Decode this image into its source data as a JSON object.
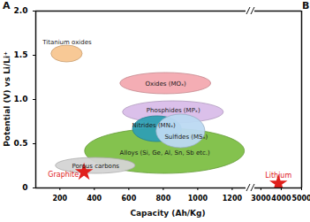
{
  "chart_data": {
    "type": "scatter",
    "panel_labels": [
      "A",
      "B"
    ],
    "x_label": "Capacity (Ah/Kg)",
    "y_label": "Potential (V) vs Li/Li⁺",
    "xlim": [
      [
        60,
        1280
      ],
      [
        2700,
        5000
      ]
    ],
    "xticks": [
      [
        200,
        400,
        600,
        800,
        1000,
        1200
      ],
      [
        3000,
        4000,
        5000
      ]
    ],
    "ylim": [
      0,
      2
    ],
    "yticks": [
      0,
      0.5,
      {
        "value": 1,
        "label": "1.0"
      },
      1.5,
      {
        "value": 2,
        "label": "2.0"
      }
    ],
    "grid": false,
    "series": [
      {
        "name": "Titanium oxides",
        "type": "ellipse",
        "color": "#f8c690",
        "x": [
          151,
          332
        ],
        "y": [
          1.42,
          1.61
        ]
      },
      {
        "name": "Oxides (MOₓ)",
        "type": "ellipse",
        "color": "#f3a9b0",
        "x": [
          551,
          1078
        ],
        "y": [
          1.06,
          1.3
        ]
      },
      {
        "name": "Phosphides (MPₓ)",
        "type": "ellipse",
        "color": "#d9bde9",
        "x": [
          566,
          1151
        ],
        "y": [
          0.73,
          0.98
        ]
      },
      {
        "name": "Alloys (Si, Ge, Al, Sn, Sb etc.)",
        "type": "ellipse",
        "color": "#7dbf45",
        "x": [
          346,
          1273
        ],
        "y": [
          0.16,
          0.67
        ]
      },
      {
        "name": "Nitrides (MNₓ)",
        "type": "ellipse",
        "color": "#2e9fb3",
        "x": [
          624,
          907
        ],
        "y": [
          0.52,
          0.81
        ]
      },
      {
        "name": "Sulfides (MSₓ)",
        "type": "ellipse",
        "color": "#bcd9f2",
        "x": [
          761,
          1044
        ],
        "y": [
          0.45,
          0.83
        ]
      },
      {
        "name": "Porous carbons",
        "type": "ellipse",
        "color": "#d4d4d4",
        "x": [
          176,
          639
        ],
        "y": [
          0.16,
          0.34
        ]
      },
      {
        "name": "Graphite",
        "type": "scatter",
        "marker": "star",
        "color": "#e0201c",
        "x": [
          340
        ],
        "y": [
          0.18
        ]
      },
      {
        "name": "Lithium",
        "type": "scatter",
        "marker": "star",
        "color": "#e0201c",
        "x": [
          3860
        ],
        "y": [
          0.05
        ]
      }
    ]
  }
}
